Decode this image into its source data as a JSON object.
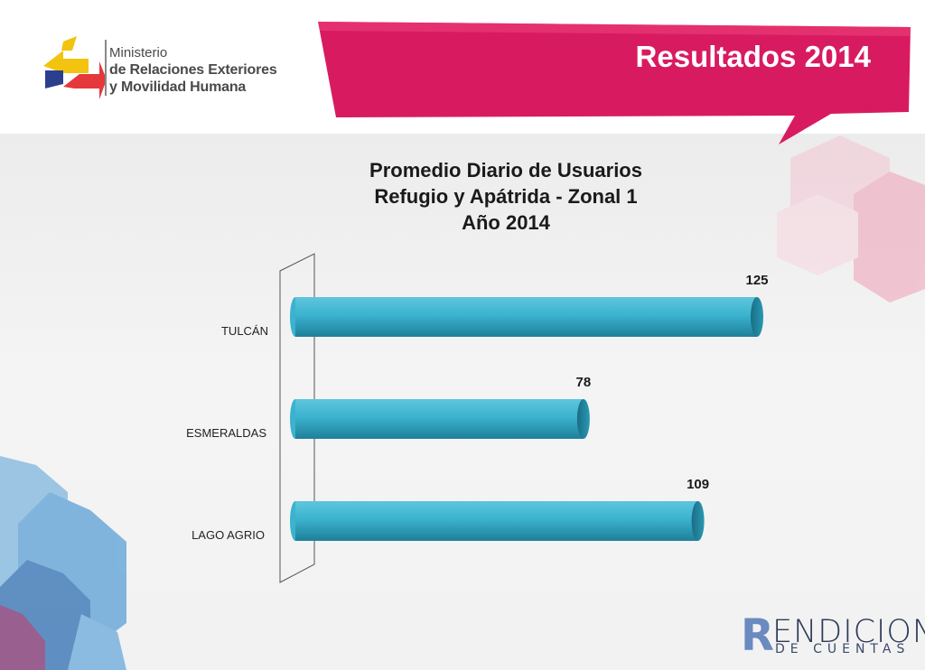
{
  "header": {
    "logo_line1": "Ministerio",
    "logo_line2": "de Relaciones Exteriores",
    "logo_line3": "y Movilidad Humana",
    "banner_title": "Resultados 2014"
  },
  "footer": {
    "logo_R": "R",
    "logo_line1": "ENDICION",
    "logo_line2": "DE CUENTAS"
  },
  "colors": {
    "bar": "#3bb3cf",
    "banner": "#d81b60",
    "accent_red": "#e5383b",
    "accent_yellow": "#f2c40f",
    "accent_blue": "#2b3f8f"
  },
  "chart_data": {
    "type": "bar",
    "orientation": "horizontal",
    "title_lines": [
      "Promedio Diario de Usuarios",
      "Refugio y Apátrida - Zonal 1",
      "Año 2014"
    ],
    "categories": [
      "TULCÁN",
      "ESMERALDAS",
      "LAGO AGRIO"
    ],
    "values": [
      125,
      78,
      109
    ],
    "data_labels": [
      "125",
      "78",
      "109"
    ],
    "xlim": [
      0,
      125
    ],
    "grid": false,
    "legend": "none"
  }
}
